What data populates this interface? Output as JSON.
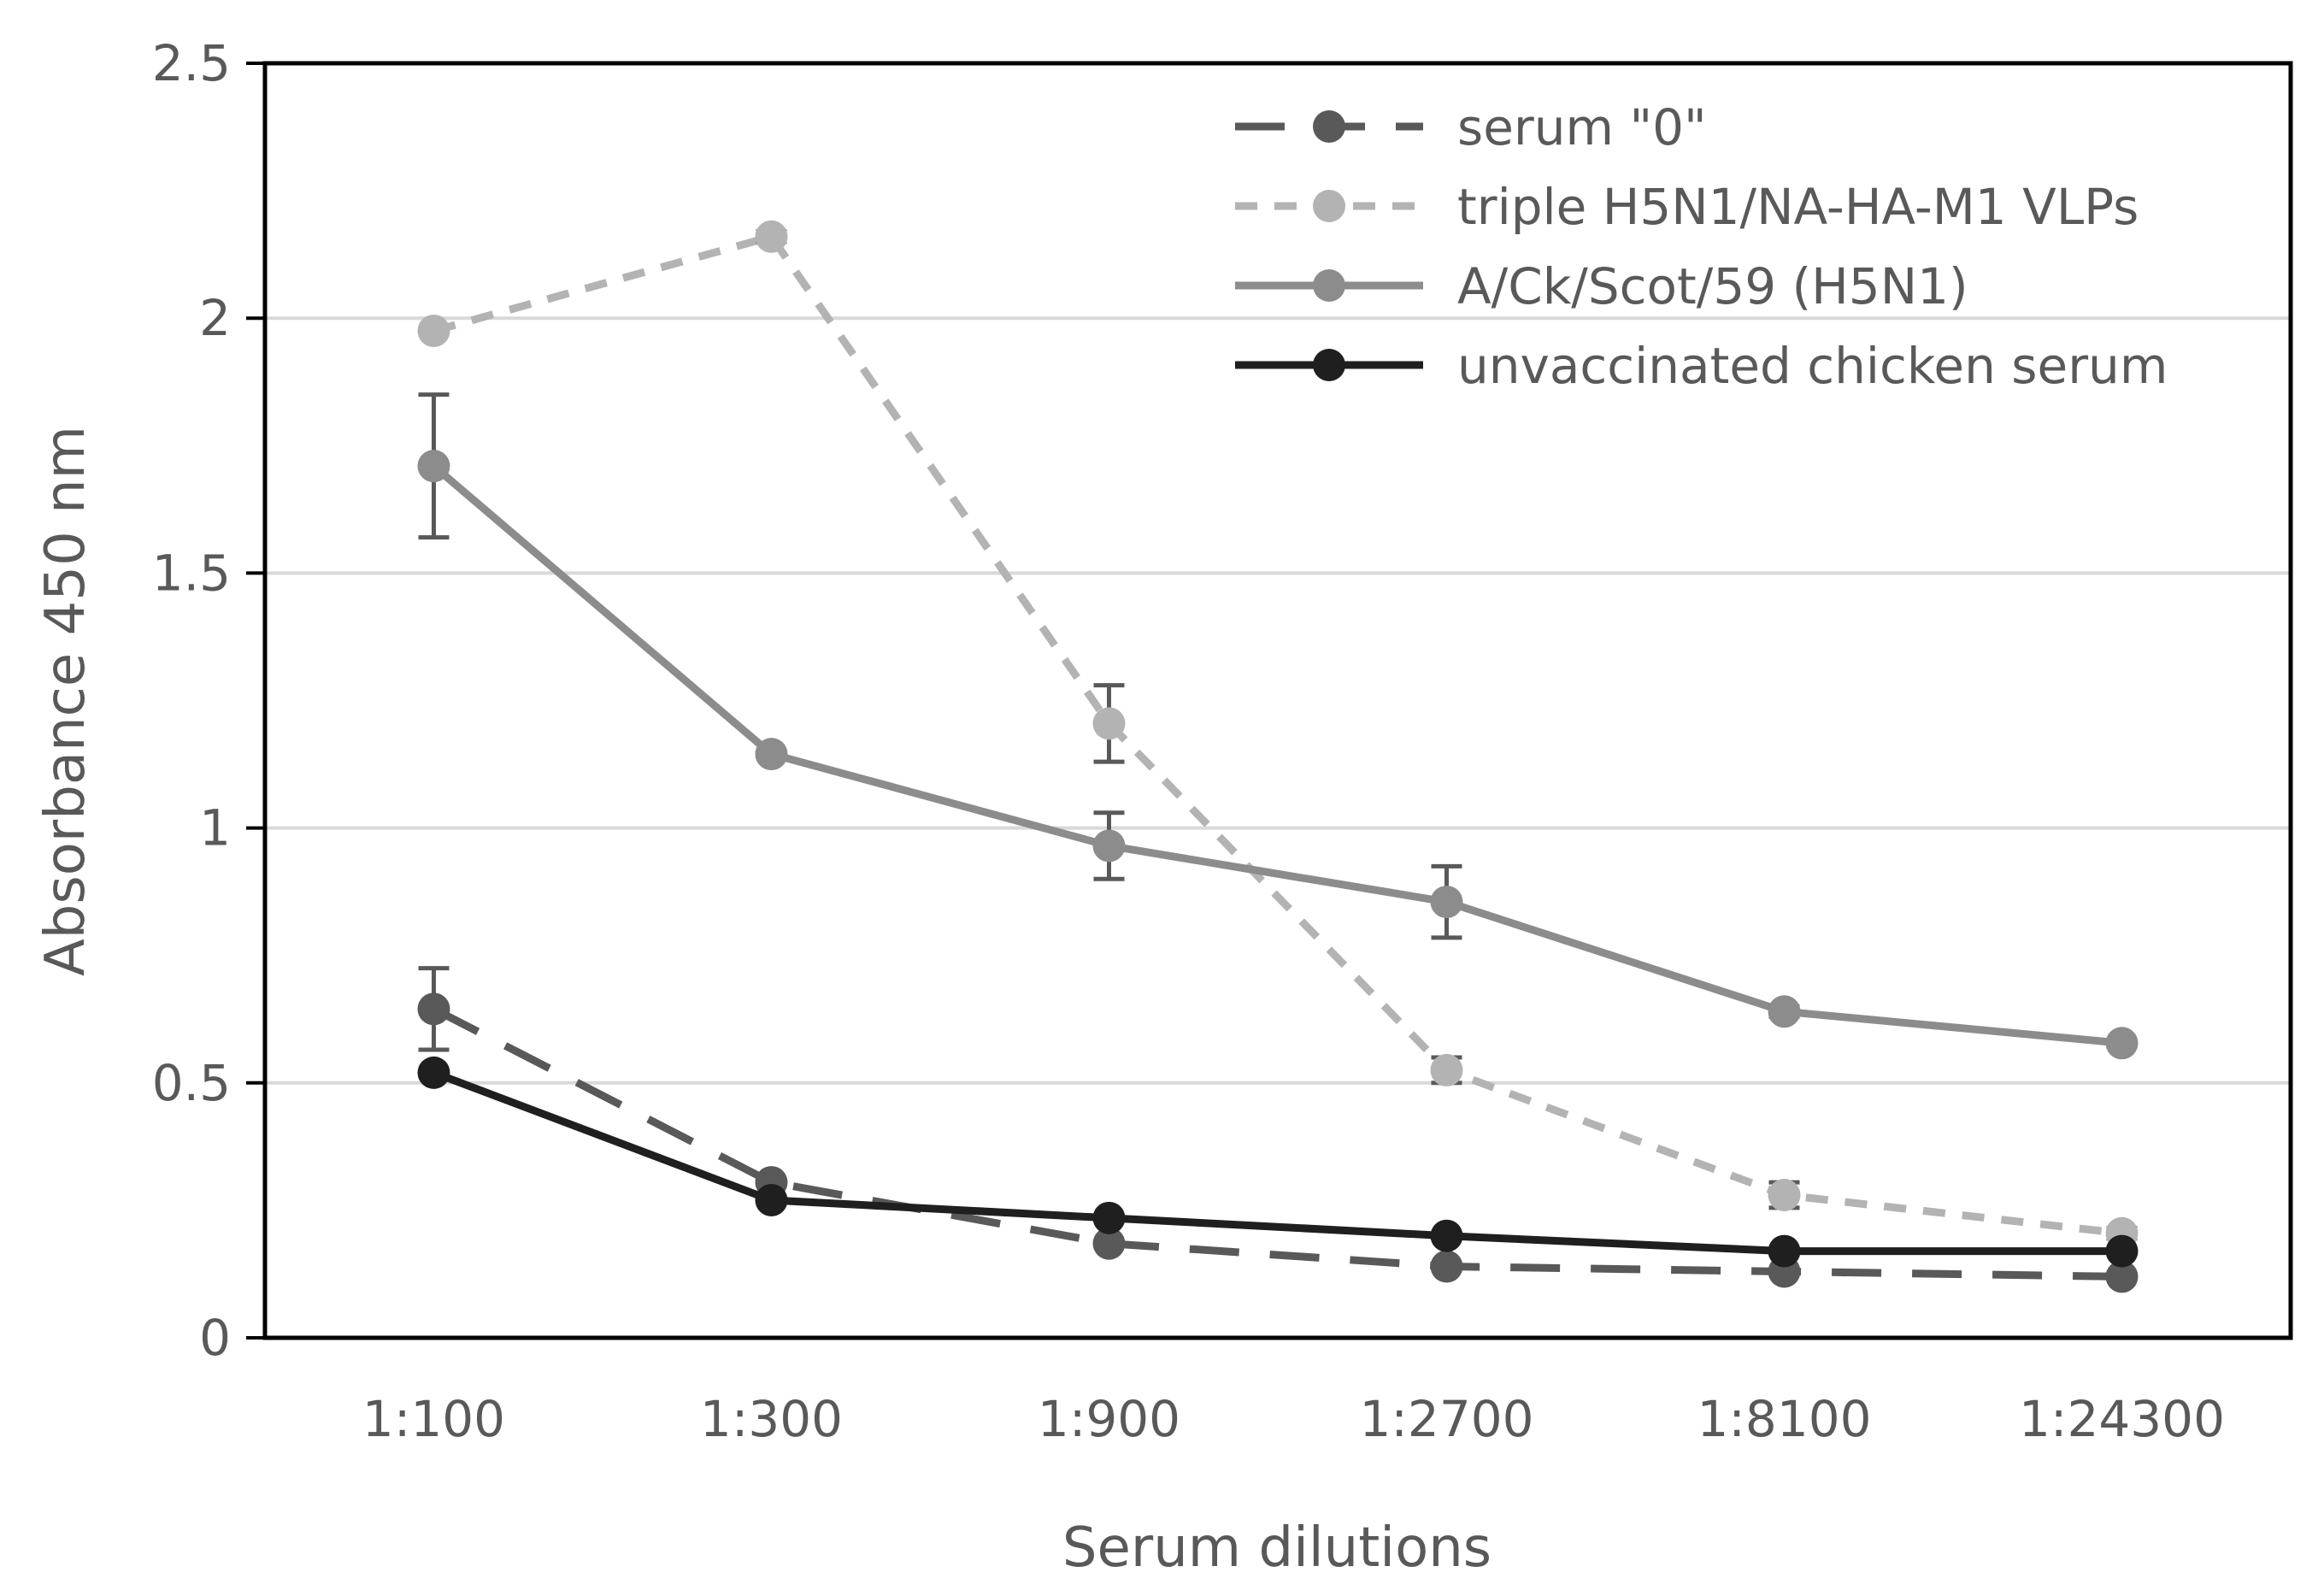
{
  "chart_data": {
    "type": "line",
    "title": "",
    "xlabel": "Serum dilutions",
    "ylabel": "Absorbance 450 nm",
    "categories": [
      "1:100",
      "1:300",
      "1:900",
      "1:2700",
      "1:8100",
      "1:24300"
    ],
    "ylim": [
      0,
      2.5
    ],
    "yticks": [
      0,
      0.5,
      1,
      1.5,
      2,
      2.5
    ],
    "ytick_labels": [
      "0",
      "0.5",
      "1",
      "1.5",
      "2",
      "2.5"
    ],
    "grid": true,
    "legend_position": "top-right",
    "series": [
      {
        "name": "serum \"0\"",
        "values": [
          0.645,
          0.305,
          0.185,
          0.14,
          0.13,
          0.12
        ],
        "errors": [
          0.08,
          0,
          0,
          0,
          0,
          0
        ],
        "color": "#595959",
        "style": "long-dash"
      },
      {
        "name": "triple H5N1/NA-HA-M1 VLPs",
        "values": [
          1.975,
          2.16,
          1.205,
          0.525,
          0.28,
          0.205
        ],
        "errors": [
          0,
          0.01,
          0.075,
          0.025,
          0.025,
          0.01
        ],
        "color": "#b3b3b3",
        "style": "short-dash"
      },
      {
        "name": "A/Ck/Scot/59 (H5N1)",
        "values": [
          1.71,
          1.145,
          0.965,
          0.855,
          0.64,
          0.578
        ],
        "errors": [
          0.14,
          0,
          0.065,
          0.07,
          0.01,
          0
        ],
        "color": "#8c8c8c",
        "style": "solid"
      },
      {
        "name": "unvaccinated chicken serum",
        "values": [
          0.52,
          0.27,
          0.235,
          0.2,
          0.17,
          0.17
        ],
        "errors": [
          0,
          0,
          0,
          0,
          0,
          0
        ],
        "color": "#1f1f1f",
        "style": "solid"
      }
    ],
    "error_bar_color": "#595959",
    "axis_color": "#000000",
    "grid_color": "#d9d9d9"
  }
}
